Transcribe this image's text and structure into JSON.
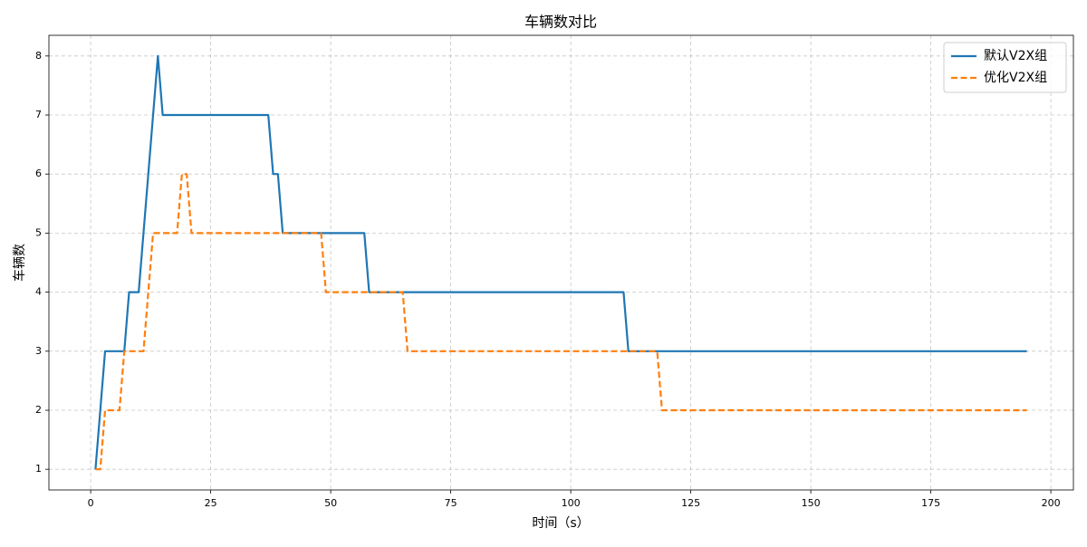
{
  "chart_data": {
    "type": "line",
    "title": "车辆数对比",
    "x_label": "时间（s）",
    "y_label": "车辆数",
    "x": [
      1,
      2,
      3,
      6,
      7,
      8,
      10,
      11,
      13,
      14,
      15,
      18,
      19,
      20,
      21,
      37,
      38,
      39,
      40,
      48,
      49,
      57,
      58,
      65,
      66,
      111,
      112,
      118,
      119,
      195
    ],
    "series": [
      {
        "name": "默认V2X组",
        "color": "#1f77b4",
        "dashed": false,
        "values": [
          1,
          2,
          3,
          3,
          3,
          4,
          4,
          5,
          7,
          8,
          7,
          7,
          7,
          7,
          7,
          7,
          6,
          6,
          5,
          5,
          5,
          5,
          4,
          4,
          4,
          4,
          3,
          3,
          3,
          3
        ]
      },
      {
        "name": "优化V2X组",
        "color": "#ff7f0e",
        "dashed": true,
        "values": [
          1,
          1,
          2,
          2,
          3,
          3,
          3,
          3,
          5,
          5,
          5,
          5,
          6,
          6,
          5,
          5,
          5,
          5,
          5,
          5,
          4,
          4,
          4,
          4,
          3,
          3,
          3,
          3,
          2,
          2
        ]
      }
    ],
    "xlim": [
      -8.7,
      204.7
    ],
    "ylim": [
      0.65,
      8.35
    ],
    "xticks": [
      0,
      25,
      50,
      75,
      100,
      125,
      150,
      175,
      200
    ],
    "yticks": [
      1,
      2,
      3,
      4,
      5,
      6,
      7,
      8
    ],
    "grid": true,
    "legend": "upper-right"
  }
}
